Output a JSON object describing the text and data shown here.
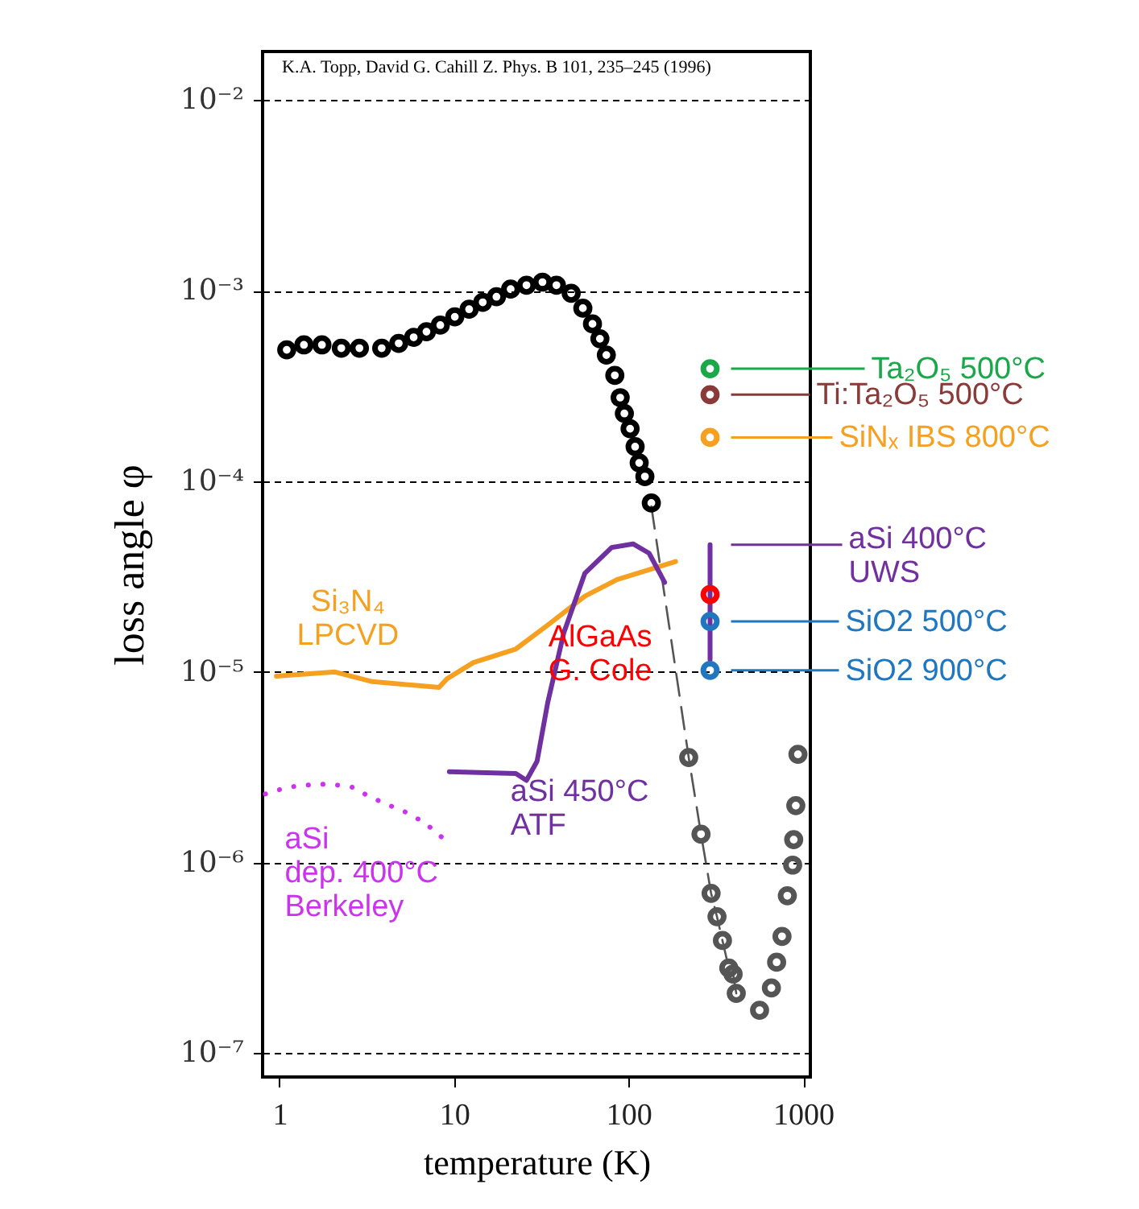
{
  "chart_data": {
    "type": "scatter",
    "xlabel": "temperature (K)",
    "ylabel": "loss angle  φ",
    "log": "xy",
    "grid": "y",
    "legend": "right",
    "xlim": [
      0.8,
      1100
    ],
    "ylim": [
      7.5e-08,
      0.018
    ],
    "xticks": [
      1,
      10,
      100,
      1000
    ],
    "yticks": [
      {
        "value": 1e-07,
        "label": "10⁻⁷"
      },
      {
        "value": 1e-06,
        "label": "10⁻⁶"
      },
      {
        "value": 1e-05,
        "label": "10⁻⁵"
      },
      {
        "value": 0.0001,
        "label": "10⁻⁴"
      },
      {
        "value": 0.001,
        "label": "10⁻³"
      },
      {
        "value": 0.01,
        "label": "10⁻²"
      }
    ],
    "annotations": [
      "K.A. Topp, David G. Cahill    Z. Phys. B 101, 235–245 (1996)"
    ],
    "series": [
      {
        "color": "#000000",
        "x": [
          1.1,
          1.38,
          1.75,
          2.26,
          2.87,
          3.85,
          4.82,
          5.87,
          6.95,
          8.34,
          10.1,
          12.2,
          14.6,
          17.5,
          21.1,
          26.0,
          32.1,
          38.6,
          46.9,
          54.7,
          62.1,
          68.5,
          74.6,
          83.4,
          89.5,
          94.6,
          102,
          109,
          115,
          124,
          135
        ],
        "values": [
          0.00049,
          0.00052,
          0.00052,
          0.0005,
          0.0005,
          0.0005,
          0.00053,
          0.00057,
          0.00061,
          0.00066,
          0.00073,
          0.0008,
          0.00087,
          0.00093,
          0.00102,
          0.00107,
          0.00111,
          0.00107,
          0.00097,
          0.00081,
          0.00067,
          0.00056,
          0.00046,
          0.00036,
          0.000275,
          0.000227,
          0.000189,
          0.000152,
          0.000125,
          0.000106,
          7.7e-05
        ]
      },
      {
        "type": "line",
        "line_style": "dashed",
        "color": "#555555",
        "x": [
          135,
          221,
          260,
          297,
          321,
          345,
          375,
          397,
          414
        ],
        "values": [
          7.4e-05,
          3.56e-06,
          1.41e-06,
          6.9e-07,
          5.2e-07,
          3.9e-07,
          2.8e-07,
          2.6e-07,
          2.06e-07
        ]
      },
      {
        "color": "#555555",
        "x": [
          221,
          260,
          297,
          321,
          345,
          375,
          397,
          414,
          563,
          658,
          705,
          757,
          812,
          871,
          883,
          908,
          934
        ],
        "values": [
          3.56e-06,
          1.41e-06,
          6.9e-07,
          5.2e-07,
          3.9e-07,
          2.8e-07,
          2.6e-07,
          2.06e-07,
          1.68e-07,
          2.2e-07,
          3e-07,
          4.1e-07,
          6.7e-07,
          9.7e-07,
          1.32e-06,
          1.99e-06,
          3.7e-06
        ]
      },
      {
        "type": "line",
        "line_style": "solid",
        "name": "Si₃N₄\nLPCVD",
        "color": "#f5a020",
        "x": [
          0.96,
          2.08,
          3.4,
          8.2,
          9.1,
          12.9,
          22.6,
          34.4,
          56.2,
          85.7,
          186
        ],
        "values": [
          9.5e-06,
          1e-05,
          8.9e-06,
          8.3e-06,
          9.2e-06,
          1.12e-05,
          1.32e-05,
          1.76e-05,
          2.5e-05,
          3.05e-05,
          3.8e-05
        ]
      },
      {
        "type": "line",
        "line_style": "solid",
        "name": "aSi 450°C\nATF",
        "color": "#7030a0",
        "x": [
          9.4,
          22.6,
          26.0,
          29.9,
          34.4,
          42.5,
          56.2,
          80,
          106,
          131,
          161
        ],
        "values": [
          3e-06,
          2.93e-06,
          2.7e-06,
          3.4e-06,
          6.9e-06,
          1.6e-05,
          3.3e-05,
          4.5e-05,
          4.7e-05,
          4.2e-05,
          2.95e-05
        ]
      },
      {
        "type": "line",
        "line_style": "dotted",
        "name": "aSi\ndep. 400°C\nBerkeley",
        "color": "#cc33ee",
        "x": [
          0.83,
          1.1,
          1.36,
          1.68,
          2.08,
          2.65,
          3.27,
          4.19,
          5.36,
          6.84,
          8.58
        ],
        "values": [
          2.29e-06,
          2.48e-06,
          2.54e-06,
          2.58e-06,
          2.56e-06,
          2.48e-06,
          2.22e-06,
          2.01e-06,
          1.83e-06,
          1.61e-06,
          1.35e-06
        ]
      },
      {
        "type": "line",
        "line_style": "solid",
        "name": "aSi 400°C\nUWS",
        "color": "#7030a0",
        "x": [
          293,
          293
        ],
        "values": [
          4.65e-05,
          1.16e-05
        ]
      },
      {
        "name": "Ta₂O₅ 500°C",
        "color": "#1aa84a",
        "x": [
          293
        ],
        "values": [
          0.00039
        ]
      },
      {
        "name": "Ti:Ta₂O₅ 500°C",
        "color": "#8b3a3a",
        "x": [
          293
        ],
        "values": [
          0.000285
        ]
      },
      {
        "name": "SiNₓ IBS 800°C",
        "color": "#f5a020",
        "x": [
          293
        ],
        "values": [
          0.00017
        ]
      },
      {
        "name": "AlGaAs\nG. Cole",
        "color": "#ff0000",
        "x": [
          293
        ],
        "values": [
          2.55e-05
        ]
      },
      {
        "name": "SiO2 500°C",
        "color": "#1f77c0",
        "x": [
          293
        ],
        "values": [
          1.84e-05
        ]
      },
      {
        "name": "SiO2 900°C",
        "color": "#1f77c0",
        "x": [
          293
        ],
        "values": [
          1.02e-05
        ]
      }
    ]
  }
}
